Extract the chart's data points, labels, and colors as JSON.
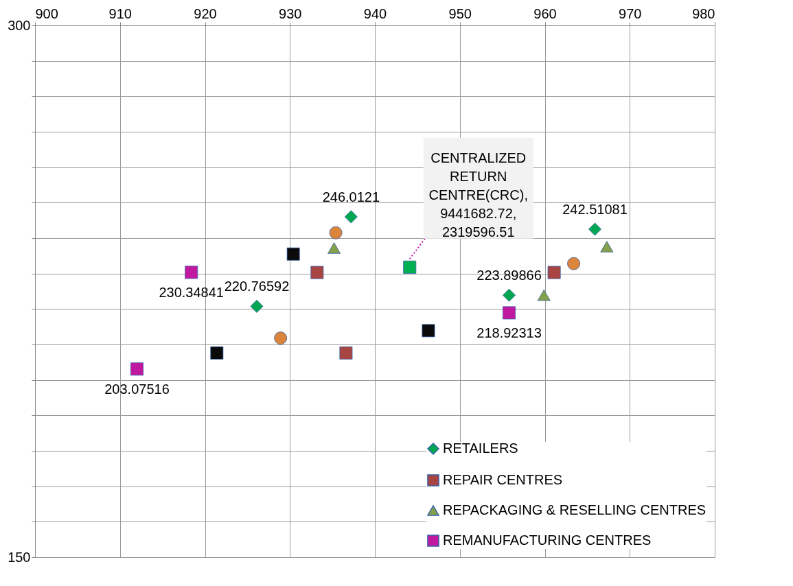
{
  "chart_data": {
    "type": "scatter",
    "xlim": [
      900,
      980
    ],
    "xticks": [
      900,
      910,
      920,
      930,
      940,
      950,
      960,
      970,
      980
    ],
    "ylim": [
      150,
      300
    ],
    "yticks": [
      150,
      {
        "value": 160,
        "label": null
      },
      {
        "value": 170,
        "label": null
      },
      {
        "value": 180,
        "label": null
      },
      {
        "value": 190,
        "label": null
      },
      {
        "value": 200,
        "label": null
      },
      {
        "value": 210,
        "label": null
      },
      {
        "value": 220,
        "label": null
      },
      {
        "value": 230,
        "label": null
      },
      {
        "value": 240,
        "label": null
      },
      {
        "value": 250,
        "label": null
      },
      {
        "value": 260,
        "label": null
      },
      {
        "value": 270,
        "label": null
      },
      {
        "value": 280,
        "label": null
      },
      {
        "value": 290,
        "label": null
      },
      300
    ],
    "grid": true,
    "legend": "bottom right",
    "series": [
      {
        "name": "RETAILERS",
        "color": "#00a651",
        "marker": "diamond",
        "x": [
          926.1,
          937.2,
          955.8,
          965.9
        ],
        "values": [
          220.76592,
          246.0121,
          223.89866,
          242.51081
        ],
        "value_labels": [
          "220.76592",
          "246.0121",
          "223.89866",
          "242.51081"
        ]
      },
      {
        "name": "REPAIR CENTRES",
        "color": "#a84442",
        "marker": "square",
        "x": [
          933.2,
          936.6,
          961.1
        ],
        "values": [
          230.3,
          207.6,
          230.3
        ]
      },
      {
        "name": "REPACKAGING & RESELLING CENTRES",
        "color": "#85a04a",
        "marker": "triangle",
        "x": [
          935.2,
          959.9,
          967.3
        ],
        "values": [
          237.2,
          223.9,
          237.6
        ]
      },
      {
        "name": "REMANUFACTURING CENTRES",
        "color": "#c0189f",
        "marker": "square",
        "x": [
          918.4,
          912.0,
          955.8
        ],
        "values": [
          230.34841,
          203.07516,
          218.92313
        ],
        "value_labels": [
          "230.34841",
          "203.07516",
          "218.92313"
        ]
      },
      {
        "color": "#dd843b",
        "marker": "circle",
        "x": [
          935.4,
          928.9,
          963.4
        ],
        "values": [
          241.5,
          211.8,
          232.8
        ]
      },
      {
        "color": "#0a0a0a",
        "marker": "square",
        "x": [
          930.4,
          921.4,
          946.3
        ],
        "values": [
          235.5,
          207.6,
          213.9
        ]
      },
      {
        "color": "#00b050",
        "marker": "square",
        "x": [
          944.1
        ],
        "values": [
          231.8
        ]
      }
    ],
    "annotations": [
      {
        "text": "CENTRALIZED\nRETURN\nCENTRE(CRC),\n9441682.72,\n2319596.51",
        "x": 944.1,
        "y": 231.8
      }
    ]
  }
}
